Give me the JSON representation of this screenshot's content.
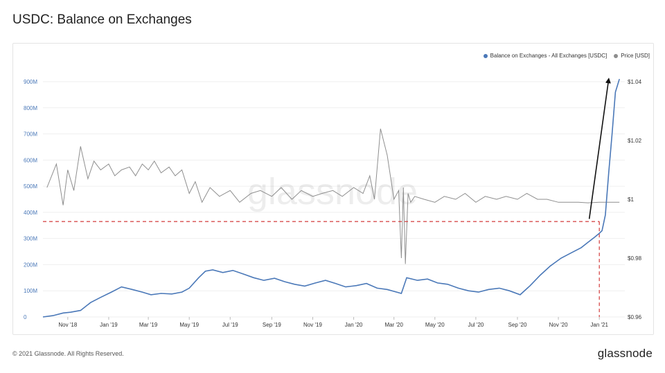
{
  "page": {
    "title": "USDC: Balance on Exchanges",
    "copyright": "© 2021 Glassnode. All Rights Reserved.",
    "logo": "glassnode",
    "watermark": "glassnode"
  },
  "colors": {
    "balance": "#4a78b8",
    "price": "#8e8e8e",
    "reference_line": "#d33a3a",
    "arrow": "#111111",
    "axis_left_text": "#4a78b8",
    "axis_right_text": "#333333"
  },
  "chart_data": {
    "type": "line",
    "title": "USDC: Balance on Exchanges",
    "legend": {
      "placement": "top-right",
      "entries": [
        "Balance on Exchanges - All Exchanges [USDC]",
        "Price [USD]"
      ]
    },
    "x_ticks": [
      "Nov '18",
      "Jan '19",
      "Mar '19",
      "May '19",
      "Jul '19",
      "Sep '19",
      "Nov '19",
      "Jan '20",
      "Mar '20",
      "May '20",
      "Jul '20",
      "Sep '20",
      "Nov '20",
      "Jan '21"
    ],
    "y_left": {
      "ticks": [
        "0",
        "100M",
        "200M",
        "300M",
        "400M",
        "500M",
        "600M",
        "700M",
        "800M",
        "900M"
      ],
      "tick_values": [
        0,
        100,
        200,
        300,
        400,
        500,
        600,
        700,
        800,
        900
      ],
      "range": [
        0,
        900
      ],
      "unit": "M"
    },
    "y_right": {
      "ticks": [
        "$0.96",
        "$0.98",
        "$1",
        "$1.02",
        "$1.04"
      ],
      "tick_values": [
        0.96,
        0.98,
        1.0,
        1.02,
        1.04
      ],
      "range": [
        0.96,
        1.04
      ]
    },
    "grid": "horizontal",
    "series": [
      {
        "name": "Balance on Exchanges - All Exchanges [USDC]",
        "axis": "left",
        "x": [
          "2018-09-25",
          "2018-10-10",
          "2018-10-25",
          "2018-11-05",
          "2018-11-20",
          "2018-12-05",
          "2018-12-20",
          "2019-01-05",
          "2019-01-20",
          "2019-02-05",
          "2019-02-20",
          "2019-03-05",
          "2019-03-20",
          "2019-04-05",
          "2019-04-20",
          "2019-05-01",
          "2019-05-15",
          "2019-05-25",
          "2019-06-05",
          "2019-06-20",
          "2019-07-05",
          "2019-07-20",
          "2019-08-05",
          "2019-08-20",
          "2019-09-05",
          "2019-09-20",
          "2019-10-05",
          "2019-10-20",
          "2019-11-05",
          "2019-11-20",
          "2019-12-05",
          "2019-12-20",
          "2020-01-05",
          "2020-01-20",
          "2020-02-05",
          "2020-02-20",
          "2020-03-05",
          "2020-03-12",
          "2020-03-20",
          "2020-04-05",
          "2020-04-20",
          "2020-05-05",
          "2020-05-20",
          "2020-06-05",
          "2020-06-20",
          "2020-07-05",
          "2020-07-20",
          "2020-08-05",
          "2020-08-20",
          "2020-09-05",
          "2020-09-20",
          "2020-10-05",
          "2020-10-20",
          "2020-11-05",
          "2020-11-20",
          "2020-12-05",
          "2020-12-15",
          "2020-12-25",
          "2021-01-01",
          "2021-01-05",
          "2021-01-10",
          "2021-01-15",
          "2021-01-20",
          "2021-01-25",
          "2021-01-31"
        ],
        "values": [
          0,
          5,
          15,
          18,
          25,
          55,
          75,
          95,
          115,
          105,
          95,
          85,
          90,
          88,
          95,
          110,
          150,
          175,
          180,
          170,
          178,
          165,
          150,
          140,
          148,
          135,
          125,
          118,
          130,
          140,
          128,
          115,
          120,
          128,
          110,
          105,
          95,
          90,
          150,
          140,
          145,
          130,
          125,
          110,
          100,
          95,
          105,
          110,
          100,
          85,
          120,
          160,
          195,
          225,
          245,
          265,
          285,
          305,
          320,
          330,
          390,
          550,
          700,
          860,
          910
        ]
      },
      {
        "name": "Price [USD]",
        "axis": "right",
        "x": [
          "2018-10-01",
          "2018-10-15",
          "2018-10-25",
          "2018-11-01",
          "2018-11-10",
          "2018-11-20",
          "2018-12-01",
          "2018-12-10",
          "2018-12-20",
          "2019-01-01",
          "2019-01-10",
          "2019-01-20",
          "2019-02-01",
          "2019-02-10",
          "2019-02-20",
          "2019-03-01",
          "2019-03-10",
          "2019-03-20",
          "2019-04-01",
          "2019-04-10",
          "2019-04-20",
          "2019-05-01",
          "2019-05-10",
          "2019-05-20",
          "2019-06-01",
          "2019-06-15",
          "2019-07-01",
          "2019-07-15",
          "2019-08-01",
          "2019-08-15",
          "2019-09-01",
          "2019-09-15",
          "2019-10-01",
          "2019-10-15",
          "2019-11-01",
          "2019-11-15",
          "2019-12-01",
          "2019-12-15",
          "2020-01-01",
          "2020-01-15",
          "2020-01-25",
          "2020-02-01",
          "2020-02-10",
          "2020-02-20",
          "2020-03-01",
          "2020-03-08",
          "2020-03-12",
          "2020-03-15",
          "2020-03-18",
          "2020-03-22",
          "2020-03-26",
          "2020-04-01",
          "2020-04-15",
          "2020-05-01",
          "2020-05-15",
          "2020-06-01",
          "2020-06-15",
          "2020-07-01",
          "2020-07-15",
          "2020-08-01",
          "2020-08-15",
          "2020-09-01",
          "2020-09-15",
          "2020-10-01",
          "2020-10-15",
          "2020-11-01",
          "2020-11-15",
          "2020-12-01",
          "2020-12-15",
          "2021-01-01",
          "2021-01-15",
          "2021-01-31"
        ],
        "values": [
          1.004,
          1.012,
          0.998,
          1.01,
          1.003,
          1.018,
          1.007,
          1.013,
          1.01,
          1.012,
          1.008,
          1.01,
          1.011,
          1.008,
          1.012,
          1.01,
          1.013,
          1.009,
          1.011,
          1.008,
          1.01,
          1.002,
          1.006,
          0.999,
          1.004,
          1.001,
          1.003,
          0.999,
          1.002,
          1.003,
          1.001,
          1.004,
          1.0,
          1.003,
          1.001,
          1.002,
          1.003,
          1.001,
          1.004,
          1.002,
          1.008,
          1.0,
          1.024,
          1.015,
          1.0,
          1.003,
          0.98,
          1.004,
          0.978,
          1.002,
          0.999,
          1.001,
          1.0,
          0.999,
          1.001,
          1.0,
          1.002,
          0.999,
          1.001,
          1.0,
          1.001,
          1.0,
          1.002,
          1.0,
          1.0,
          0.999,
          0.999,
          0.999,
          0.9988,
          0.999,
          0.999,
          0.999
        ]
      }
    ],
    "annotations": [
      {
        "type": "horizontal-dashed-line",
        "axis": "left",
        "value": 365
      },
      {
        "type": "vertical-dashed-line",
        "x": "2021-01-01"
      },
      {
        "type": "arrow",
        "from": {
          "x": "2020-12-17",
          "y": 375
        },
        "to": {
          "x": "2021-01-15",
          "y": 910
        }
      }
    ]
  }
}
